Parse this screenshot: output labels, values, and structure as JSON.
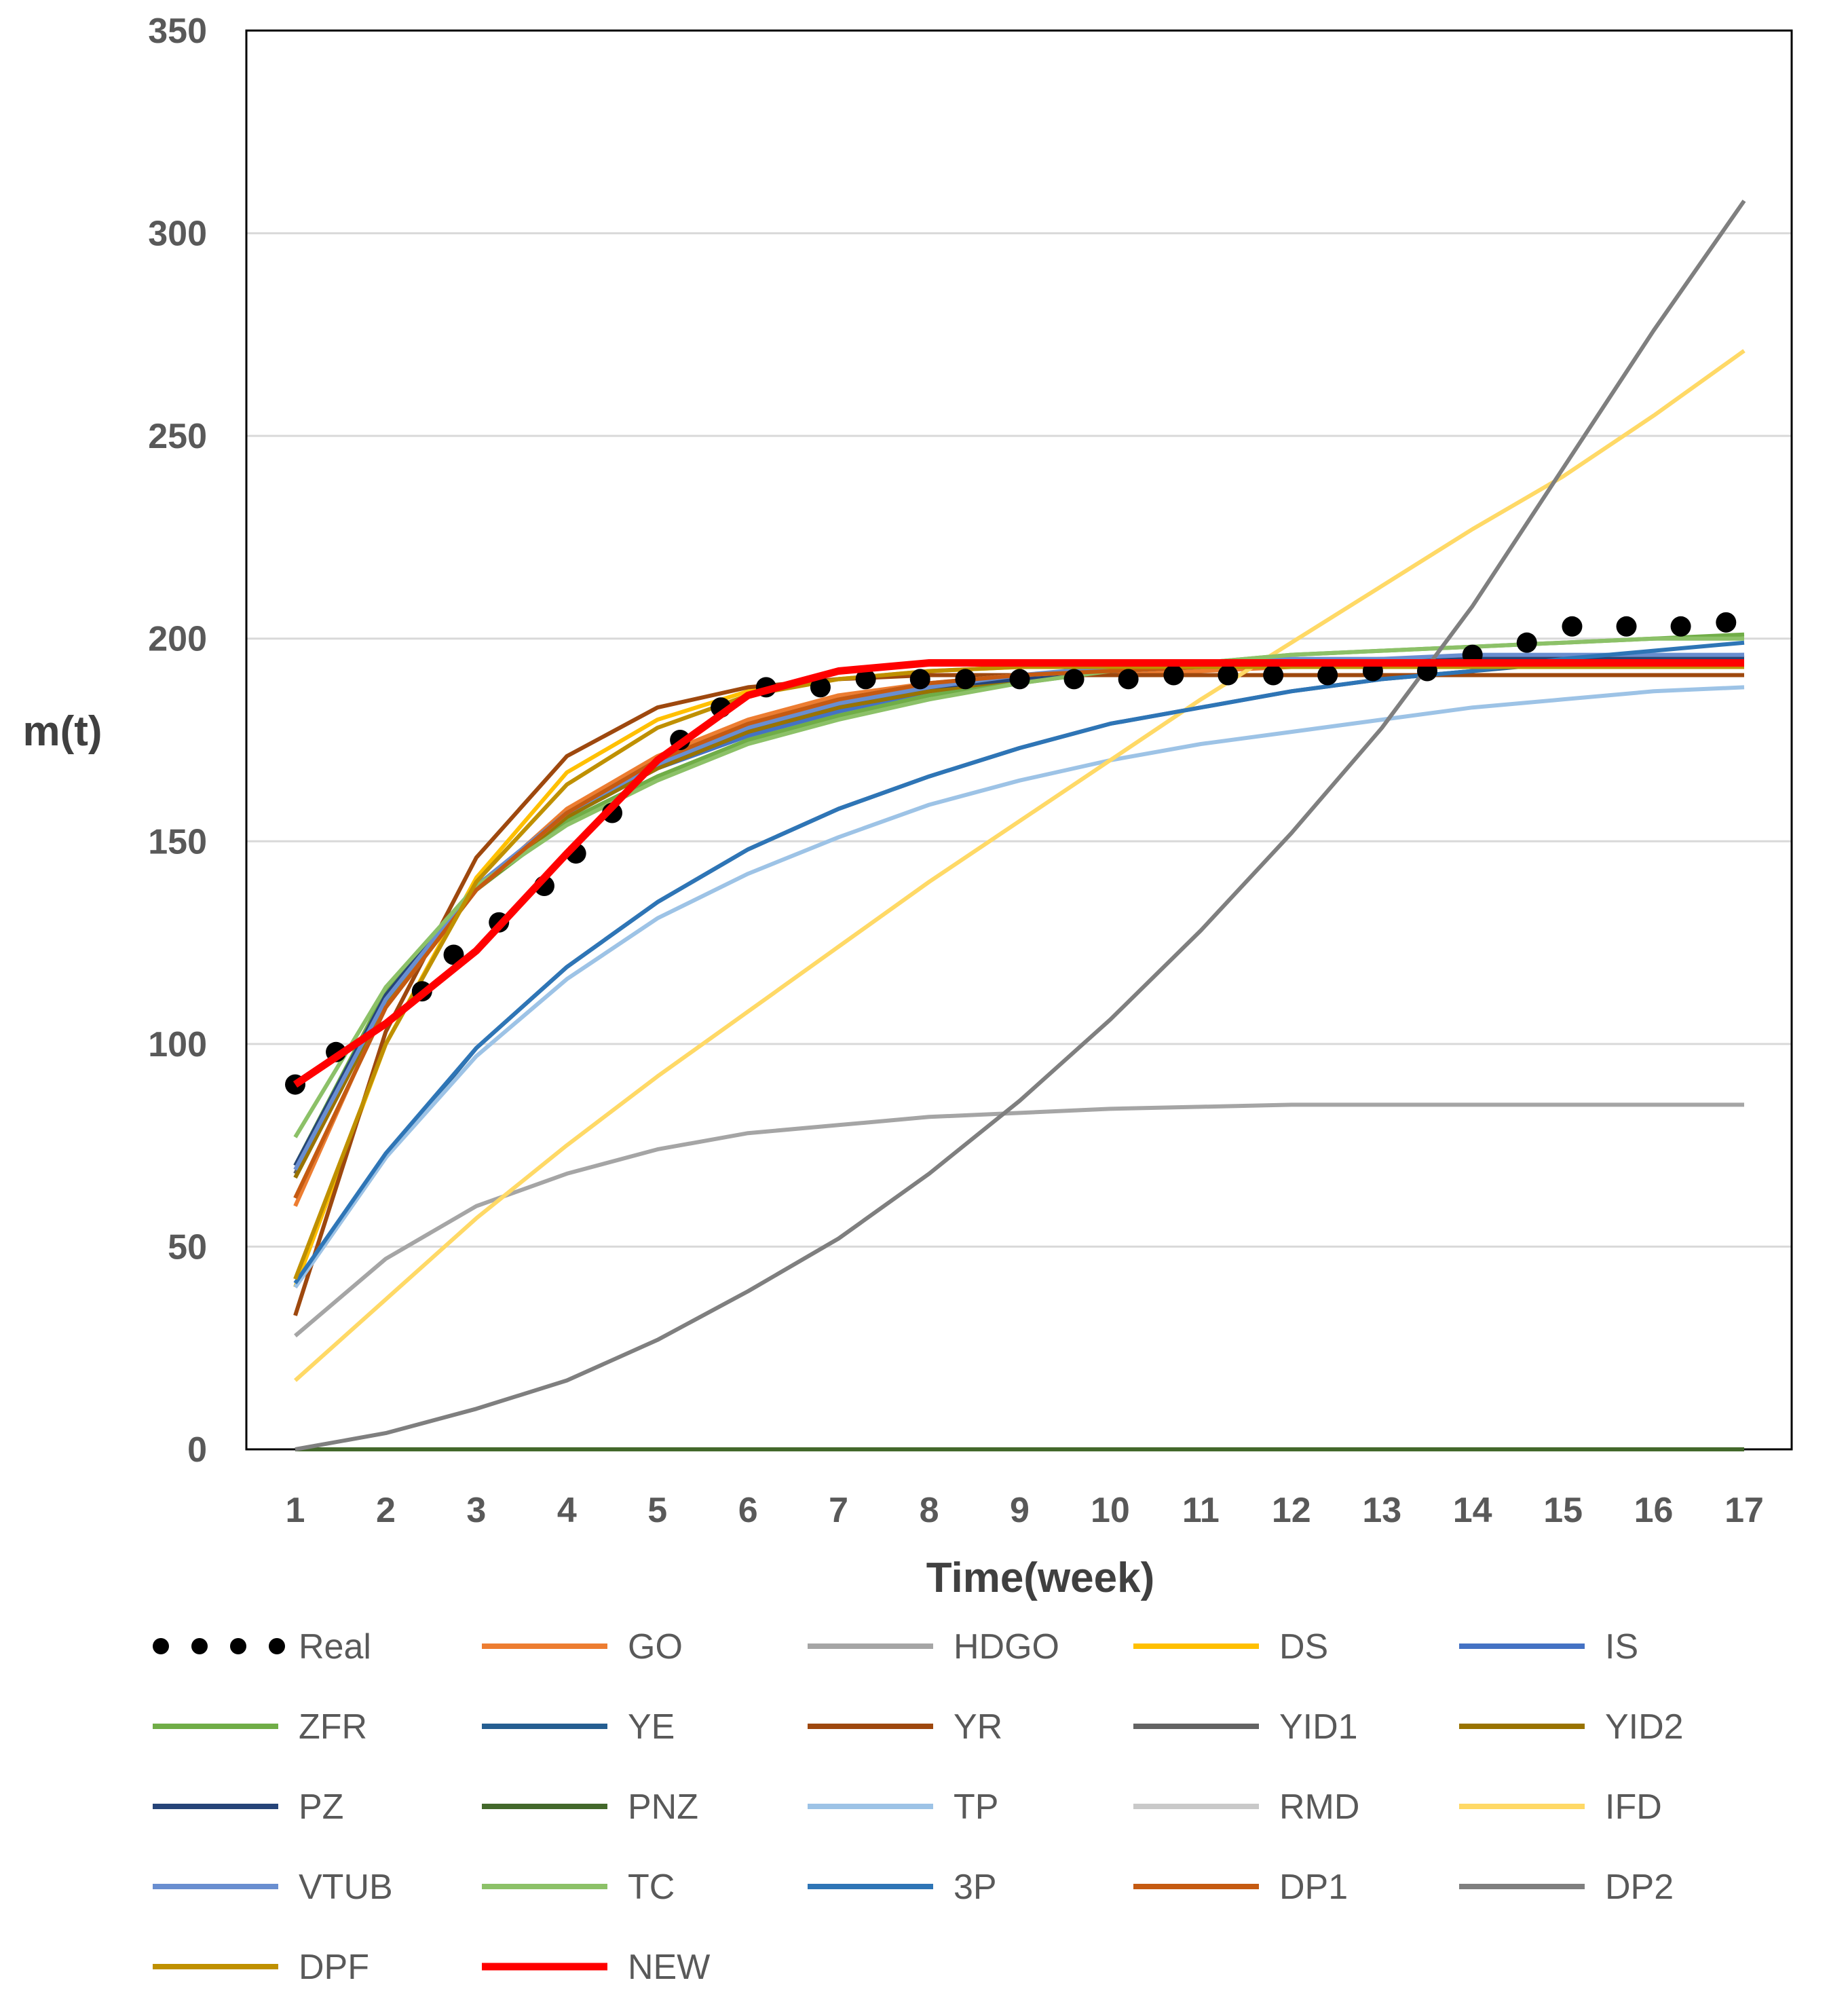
{
  "chart_data": {
    "type": "line",
    "xlabel": "Time(week)",
    "ylabel": "m(t)",
    "xlim": [
      1,
      17
    ],
    "ylim": [
      0,
      350
    ],
    "x_ticks": [
      1,
      2,
      3,
      4,
      5,
      6,
      7,
      8,
      9,
      10,
      11,
      12,
      13,
      14,
      15,
      16,
      17
    ],
    "y_ticks": [
      0,
      50,
      100,
      150,
      200,
      250,
      300,
      350
    ],
    "grid": "horizontal",
    "legend_position": "bottom",
    "series": [
      {
        "name": "Real",
        "color": "#000000",
        "style": "dots",
        "x": [
          1,
          1.45,
          2.4,
          2.75,
          3.25,
          3.75,
          4.1,
          4.5,
          5.25,
          5.7,
          6.2,
          6.8,
          7.3,
          7.9,
          8.4,
          9,
          9.6,
          10.2,
          10.7,
          11.3,
          11.8,
          12.4,
          12.9,
          13.5,
          14,
          14.6,
          15.1,
          15.7,
          16.3,
          16.8
        ],
        "values": [
          90,
          98,
          113,
          122,
          130,
          139,
          147,
          157,
          175,
          183,
          188,
          188,
          190,
          190,
          190,
          190,
          190,
          190,
          191,
          191,
          191,
          191,
          192,
          192,
          196,
          199,
          203,
          203,
          203,
          204
        ]
      },
      {
        "name": "GO",
        "color": "#ED7D31",
        "x": [
          1,
          2,
          3,
          4,
          5,
          6,
          7,
          8,
          9,
          10,
          11,
          12,
          13,
          14,
          15,
          16,
          17
        ],
        "values": [
          60,
          110,
          138,
          158,
          171,
          180,
          186,
          189,
          191,
          192,
          192,
          193,
          193,
          193,
          193,
          193,
          193
        ]
      },
      {
        "name": "HDGO",
        "color": "#A5A5A5",
        "x": [
          1,
          2,
          3,
          4,
          5,
          6,
          7,
          8,
          9,
          10,
          11,
          12,
          13,
          14,
          15,
          16,
          17
        ],
        "values": [
          28,
          47,
          60,
          68,
          74,
          78,
          80,
          82,
          83,
          84,
          84.5,
          85,
          85,
          85,
          85,
          85,
          85
        ]
      },
      {
        "name": "DS",
        "color": "#FFC000",
        "x": [
          1,
          2,
          3,
          4,
          5,
          6,
          7,
          8,
          9,
          10,
          11,
          12,
          13,
          14,
          15,
          16,
          17
        ],
        "values": [
          40,
          100,
          141,
          167,
          180,
          187,
          190,
          192,
          193,
          193,
          193,
          193,
          193,
          193,
          193,
          193,
          193
        ]
      },
      {
        "name": "IS",
        "color": "#4472C4",
        "x": [
          1,
          2,
          3,
          4,
          5,
          6,
          7,
          8,
          9,
          10,
          11,
          12,
          13,
          14,
          15,
          16,
          17
        ],
        "values": [
          68,
          111,
          138,
          156,
          168,
          176,
          182,
          187,
          190,
          192,
          193,
          194,
          195,
          195,
          195,
          195,
          195
        ]
      },
      {
        "name": "ZFR",
        "color": "#70AD47",
        "x": [
          1,
          2,
          3,
          4,
          5,
          6,
          7,
          8,
          9,
          10,
          11,
          12,
          13,
          14,
          15,
          16,
          17
        ],
        "values": [
          70,
          113,
          138,
          155,
          166,
          175,
          181,
          186,
          189,
          192,
          194,
          196,
          197,
          198,
          199,
          200,
          201
        ]
      },
      {
        "name": "YE",
        "color": "#255E91",
        "x": [
          1,
          2,
          3,
          4,
          5,
          6,
          7,
          8,
          9,
          10,
          11,
          12,
          13,
          14,
          15,
          16,
          17
        ],
        "values": [
          40,
          72,
          99,
          119,
          135,
          148,
          158,
          166,
          173,
          179,
          183,
          187,
          190,
          192,
          194,
          195,
          196
        ]
      },
      {
        "name": "YR",
        "color": "#9E480E",
        "x": [
          1,
          2,
          3,
          4,
          5,
          6,
          7,
          8,
          9,
          10,
          11,
          12,
          13,
          14,
          15,
          16,
          17
        ],
        "values": [
          33,
          103,
          146,
          171,
          183,
          188,
          190,
          191,
          191,
          191,
          191,
          191,
          191,
          191,
          191,
          191,
          191
        ]
      },
      {
        "name": "YID1",
        "color": "#636363",
        "x": [
          1,
          2,
          3,
          4,
          5,
          6,
          7,
          8,
          9,
          10,
          11,
          12,
          13,
          14,
          15,
          16,
          17
        ],
        "values": [
          68,
          110,
          138,
          156,
          168,
          177,
          183,
          187,
          190,
          192,
          193,
          194,
          194,
          195,
          195,
          195,
          195
        ]
      },
      {
        "name": "YID2",
        "color": "#997300",
        "x": [
          1,
          2,
          3,
          4,
          5,
          6,
          7,
          8,
          9,
          10,
          11,
          12,
          13,
          14,
          15,
          16,
          17
        ],
        "values": [
          67,
          110,
          138,
          156,
          168,
          177,
          183,
          187,
          190,
          192,
          193,
          194,
          194,
          195,
          195,
          195,
          195
        ]
      },
      {
        "name": "PZ",
        "color": "#264478",
        "x": [
          1,
          2,
          3,
          4,
          5,
          6,
          7,
          8,
          9,
          10,
          11,
          12,
          13,
          14,
          15,
          16,
          17
        ],
        "values": [
          70,
          112,
          139,
          157,
          169,
          178,
          184,
          188,
          190,
          192,
          193,
          194,
          194,
          195,
          195,
          195,
          195
        ]
      },
      {
        "name": "PNZ",
        "color": "#43682B",
        "x": [
          1,
          2,
          3,
          4,
          5,
          6,
          7,
          8,
          9,
          10,
          11,
          12,
          13,
          14,
          15,
          16,
          17
        ],
        "values": [
          0,
          0,
          0,
          0,
          0,
          0,
          0,
          0,
          0,
          0,
          0,
          0,
          0,
          0,
          0,
          0,
          0
        ]
      },
      {
        "name": "TP",
        "color": "#9DC3E6",
        "x": [
          1,
          2,
          3,
          4,
          5,
          6,
          7,
          8,
          9,
          10,
          11,
          12,
          13,
          14,
          15,
          16,
          17
        ],
        "values": [
          40,
          72,
          97,
          116,
          131,
          142,
          151,
          159,
          165,
          170,
          174,
          177,
          180,
          183,
          185,
          187,
          188
        ]
      },
      {
        "name": "RMD",
        "color": "#C9C9C9",
        "x": [
          1,
          2,
          3,
          4,
          5,
          6,
          7,
          8,
          9,
          10,
          11,
          12,
          13,
          14,
          15,
          16,
          17
        ],
        "values": [
          62,
          109,
          138,
          157,
          170,
          179,
          185,
          189,
          191,
          192,
          193,
          193,
          194,
          194,
          194,
          194,
          194
        ]
      },
      {
        "name": "IFD",
        "color": "#FFD966",
        "x": [
          1,
          2,
          3,
          4,
          5,
          6,
          7,
          8,
          9,
          10,
          11,
          12,
          13,
          14,
          15,
          16,
          17
        ],
        "values": [
          17,
          37,
          57,
          75,
          92,
          108,
          124,
          140,
          155,
          170,
          185,
          199,
          213,
          227,
          240,
          255,
          271
        ]
      },
      {
        "name": "VTUB",
        "color": "#698ED0",
        "x": [
          1,
          2,
          3,
          4,
          5,
          6,
          7,
          8,
          9,
          10,
          11,
          12,
          13,
          14,
          15,
          16,
          17
        ],
        "values": [
          69,
          111,
          139,
          157,
          169,
          178,
          184,
          188,
          191,
          193,
          194,
          195,
          195,
          196,
          196,
          196,
          196
        ]
      },
      {
        "name": "TC",
        "color": "#8CC168",
        "x": [
          1,
          2,
          3,
          4,
          5,
          6,
          7,
          8,
          9,
          10,
          11,
          12,
          13,
          14,
          15,
          16,
          17
        ],
        "values": [
          77,
          114,
          139,
          154,
          165,
          174,
          180,
          185,
          189,
          192,
          194,
          196,
          197,
          198,
          199,
          200,
          200
        ]
      },
      {
        "name": "3P",
        "color": "#2E75B6",
        "x": [
          1,
          2,
          3,
          4,
          5,
          6,
          7,
          8,
          9,
          10,
          11,
          12,
          13,
          14,
          15,
          16,
          17
        ],
        "values": [
          41,
          73,
          99,
          119,
          135,
          148,
          158,
          166,
          173,
          179,
          183,
          187,
          190,
          192,
          195,
          197,
          199
        ]
      },
      {
        "name": "DP1",
        "color": "#C55A11",
        "x": [
          1,
          2,
          3,
          4,
          5,
          6,
          7,
          8,
          9,
          10,
          11,
          12,
          13,
          14,
          15,
          16,
          17
        ],
        "values": [
          62,
          109,
          138,
          157,
          170,
          179,
          185,
          189,
          191,
          192,
          193,
          193,
          193,
          193,
          193,
          193,
          193
        ]
      },
      {
        "name": "DP2",
        "color": "#7F7F7F",
        "x": [
          1,
          2,
          3,
          4,
          5,
          6,
          7,
          8,
          9,
          10,
          11,
          12,
          13,
          14,
          15,
          16,
          17
        ],
        "values": [
          0,
          4,
          10,
          17,
          27,
          39,
          52,
          68,
          86,
          106,
          128,
          152,
          178,
          208,
          242,
          276,
          308
        ]
      },
      {
        "name": "DPF",
        "color": "#BF9000",
        "x": [
          1,
          2,
          3,
          4,
          5,
          6,
          7,
          8,
          9,
          10,
          11,
          12,
          13,
          14,
          15,
          16,
          17
        ],
        "values": [
          42,
          100,
          140,
          164,
          178,
          186,
          190,
          192,
          193,
          193,
          193,
          193,
          193,
          193,
          193,
          193,
          193
        ]
      },
      {
        "name": "NEW",
        "color": "#FF0000",
        "x": [
          1,
          2,
          3,
          4,
          5,
          6,
          7,
          8,
          9,
          10,
          11,
          12,
          13,
          14,
          15,
          16,
          17
        ],
        "values": [
          90,
          105,
          123,
          147,
          170,
          186,
          192,
          194,
          194,
          194,
          194,
          194,
          194,
          194,
          194,
          194,
          194
        ]
      }
    ]
  }
}
